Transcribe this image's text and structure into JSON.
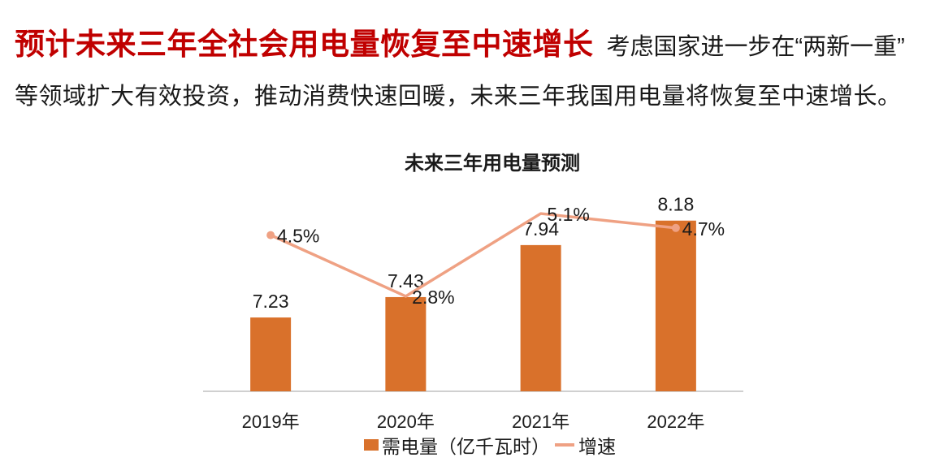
{
  "header": {
    "title_highlight": "预计未来三年全社会用电量恢复至中速增长",
    "title_rest": "考虑国家进一步在“两新一重”",
    "subtitle": "等领域扩大有效投资，推动消费快速回暖，未来三年我国用电量将恢复至中速增长。"
  },
  "chart_data": {
    "type": "combo",
    "title": "未来三年用电量预测",
    "categories": [
      "2019年",
      "2020年",
      "2021年",
      "2022年"
    ],
    "series": [
      {
        "name": "需电量（亿千瓦时）",
        "type": "bar",
        "values": [
          7.23,
          7.43,
          7.94,
          8.18
        ],
        "labels": [
          "7.23",
          "7.43",
          "7.94",
          "8.18"
        ],
        "color": "#D9712B"
      },
      {
        "name": "增速",
        "type": "line",
        "values": [
          4.5,
          2.8,
          5.1,
          4.7
        ],
        "labels": [
          "4.5%",
          "2.8%",
          "5.1%",
          "4.7%"
        ],
        "color": "#EFA183"
      }
    ],
    "xlabel": "",
    "ylabel": "",
    "grid": false,
    "legend_position": "bottom"
  },
  "colors": {
    "accent_red": "#C00000",
    "text": "#1A1A1A",
    "bar": "#D9712B",
    "line": "#EFA183",
    "axis": "#D0D0D0"
  }
}
